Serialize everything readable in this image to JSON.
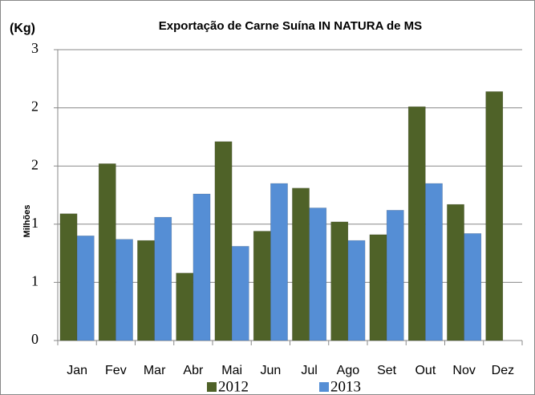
{
  "chart_data": {
    "type": "bar",
    "title": "Exportação de Carne Suína IN NATURA de MS",
    "unit_label": "(Kg)",
    "ylabel": "Milhões",
    "categories": [
      "Jan",
      "Fev",
      "Mar",
      "Abr",
      "Mai",
      "Jun",
      "Jul",
      "Ago",
      "Set",
      "Out",
      "Nov",
      "Dez"
    ],
    "series": [
      {
        "name": "2012",
        "color": "#4f6228",
        "values": [
          1.09,
          1.52,
          0.86,
          0.58,
          1.71,
          0.94,
          1.31,
          1.02,
          0.91,
          2.01,
          1.17,
          2.14
        ]
      },
      {
        "name": "2013",
        "color": "#558ed5",
        "values": [
          0.9,
          0.87,
          1.06,
          1.26,
          0.81,
          1.35,
          1.14,
          0.86,
          1.12,
          1.35,
          0.92,
          null
        ]
      }
    ],
    "ylim": [
      0,
      2.5
    ],
    "yticks": [
      0,
      {
        "value": 0.5,
        "label": "1"
      },
      1,
      {
        "value": 1.5,
        "label": "2"
      },
      2,
      {
        "value": 2.5,
        "label": "3"
      }
    ],
    "grid": true
  }
}
